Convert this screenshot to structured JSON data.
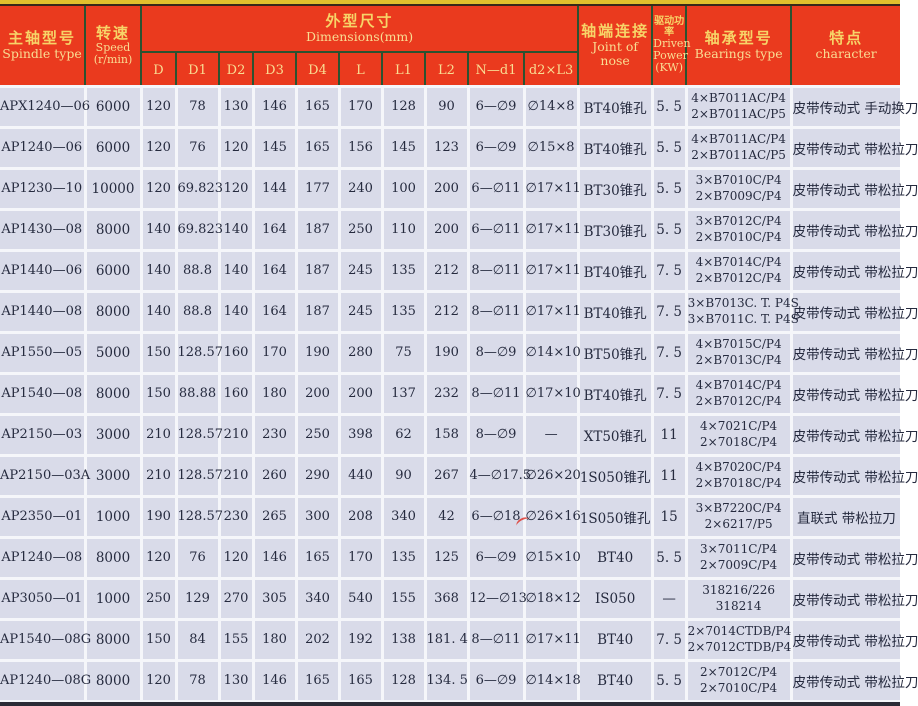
{
  "header": {
    "spindle": {
      "zh": "主轴型号",
      "en": "Spindle type"
    },
    "speed": {
      "zh": "转速",
      "en": "Speed",
      "unit": "(r/min)"
    },
    "dims": {
      "zh": "外型尺寸",
      "en": "Dimensions(mm)",
      "subs": [
        "D",
        "D1",
        "D2",
        "D3",
        "D4",
        "L",
        "L1",
        "L2",
        "N—d1",
        "d2×L3"
      ]
    },
    "joint": {
      "zh": "轴端连接",
      "en": "Joint of",
      "en2": "nose"
    },
    "power": {
      "zh": "驱动功率",
      "en": "Driven",
      "en2": "Power",
      "unit": "(KW)"
    },
    "bearings": {
      "zh": "轴承型号",
      "en": "Bearings type"
    },
    "character": {
      "zh": "特点",
      "en": "character"
    }
  },
  "rows": [
    {
      "model": "APX1240—06",
      "speed": "6000",
      "dims": [
        "120",
        "78",
        "130",
        "146",
        "165",
        "170",
        "128",
        "90",
        "6—∅9",
        "∅14×8"
      ],
      "joint": "BT40锥孔",
      "power": "5. 5",
      "bearings": [
        "4×B7011AC/P4",
        "2×B7011AC/P5"
      ],
      "character": "皮带传动式 手动换刀"
    },
    {
      "model": "AP1240—06",
      "speed": "6000",
      "dims": [
        "120",
        "76",
        "120",
        "145",
        "165",
        "156",
        "145",
        "123",
        "6—∅9",
        "∅15×8"
      ],
      "joint": "BT40锥孔",
      "power": "5. 5",
      "bearings": [
        "4×B7011AC/P4",
        "2×B7011AC/P5"
      ],
      "character": "皮带传动式 带松拉刀"
    },
    {
      "model": "AP1230—10",
      "speed": "10000",
      "dims": [
        "120",
        "69.823",
        "120",
        "144",
        "177",
        "240",
        "100",
        "200",
        "6—∅11",
        "∅17×11"
      ],
      "joint": "BT30锥孔",
      "power": "5. 5",
      "bearings": [
        "3×B7010C/P4",
        "2×B7009C/P4"
      ],
      "character": "皮带传动式 带松拉刀"
    },
    {
      "model": "AP1430—08",
      "speed": "8000",
      "dims": [
        "140",
        "69.823",
        "140",
        "164",
        "187",
        "250",
        "110",
        "200",
        "6—∅11",
        "∅17×11"
      ],
      "joint": "BT30锥孔",
      "power": "5. 5",
      "bearings": [
        "3×B7012C/P4",
        "2×B7010C/P4"
      ],
      "character": "皮带传动式 带松拉刀"
    },
    {
      "model": "AP1440—06",
      "speed": "6000",
      "dims": [
        "140",
        "88.8",
        "140",
        "164",
        "187",
        "245",
        "135",
        "212",
        "8—∅11",
        "∅17×11"
      ],
      "joint": "BT40锥孔",
      "power": "7. 5",
      "bearings": [
        "4×B7014C/P4",
        "2×B7012C/P4"
      ],
      "character": "皮带传动式 带松拉刀"
    },
    {
      "model": "AP1440—08",
      "speed": "8000",
      "dims": [
        "140",
        "88.8",
        "140",
        "164",
        "187",
        "245",
        "135",
        "212",
        "8—∅11",
        "∅17×11"
      ],
      "joint": "BT40锥孔",
      "power": "7. 5",
      "bearings": [
        "3×B7013C. T. P4S",
        "3×B7011C. T. P4S"
      ],
      "character": "皮带传动式 带松拉刀"
    },
    {
      "model": "AP1550—05",
      "speed": "5000",
      "dims": [
        "150",
        "128.57",
        "160",
        "170",
        "190",
        "280",
        "75",
        "190",
        "8—∅9",
        "∅14×10"
      ],
      "joint": "BT50锥孔",
      "power": "7. 5",
      "bearings": [
        "4×B7015C/P4",
        "2×B7013C/P4"
      ],
      "character": "皮带传动式 带松拉刀"
    },
    {
      "model": "AP1540—08",
      "speed": "8000",
      "dims": [
        "150",
        "88.88",
        "160",
        "180",
        "200",
        "200",
        "137",
        "232",
        "8—∅11",
        "∅17×10"
      ],
      "joint": "BT40锥孔",
      "power": "7. 5",
      "bearings": [
        "4×B7014C/P4",
        "2×B7012C/P4"
      ],
      "character": "皮带传动式 带松拉刀"
    },
    {
      "model": "AP2150—03",
      "speed": "3000",
      "dims": [
        "210",
        "128.57",
        "210",
        "230",
        "250",
        "398",
        "62",
        "158",
        "8—∅9",
        "—"
      ],
      "joint": "XT50锥孔",
      "power": "11",
      "bearings": [
        "4×7021C/P4",
        "2×7018C/P4"
      ],
      "character": "皮带传动式 带松拉刀"
    },
    {
      "model": "AP2150—03A",
      "speed": "3000",
      "dims": [
        "210",
        "128.57",
        "210",
        "260",
        "290",
        "440",
        "90",
        "267",
        "4—∅17.5",
        "∅26×20"
      ],
      "joint": "1S050锥孔",
      "power": "11",
      "bearings": [
        "4×B7020C/P4",
        "2×B7018C/P4"
      ],
      "character": "皮带传动式 带松拉刀"
    },
    {
      "model": "AP2350—01",
      "speed": "1000",
      "dims": [
        "190",
        "128.57",
        "230",
        "265",
        "300",
        "208",
        "340",
        "42",
        "6—∅18",
        "∅26×16"
      ],
      "joint": "1S050锥孔",
      "power": "15",
      "bearings": [
        "3×B7220C/P4",
        "2×6217/P5"
      ],
      "character": "直联式  带松拉刀"
    },
    {
      "model": "AP1240—08",
      "speed": "8000",
      "dims": [
        "120",
        "76",
        "120",
        "146",
        "165",
        "170",
        "135",
        "125",
        "6—∅9",
        "∅15×10"
      ],
      "joint": "BT40",
      "power": "5. 5",
      "bearings": [
        "3×7011C/P4",
        "2×7009C/P4"
      ],
      "character": "皮带传动式 带松拉刀"
    },
    {
      "model": "AP3050—01",
      "speed": "1000",
      "dims": [
        "250",
        "129",
        "270",
        "305",
        "340",
        "540",
        "155",
        "368",
        "12—∅13",
        "∅18×12"
      ],
      "joint": "IS050",
      "power": "—",
      "bearings": [
        "318216/226",
        "318214"
      ],
      "character": "皮带传动式 带松拉刀"
    },
    {
      "model": "AP1540—08G",
      "speed": "8000",
      "dims": [
        "150",
        "84",
        "155",
        "180",
        "202",
        "192",
        "138",
        "181. 4",
        "8—∅11",
        "∅17×11"
      ],
      "joint": "BT40",
      "power": "7. 5",
      "bearings": [
        "2×7014CTDB/P4",
        "2×7012CTDB/P4"
      ],
      "character": "皮带传动式 带松拉刀"
    },
    {
      "model": "AP1240—08G",
      "speed": "8000",
      "dims": [
        "120",
        "78",
        "130",
        "146",
        "165",
        "165",
        "128",
        "134. 5",
        "6—∅9",
        "∅14×18"
      ],
      "joint": "BT40",
      "power": "5. 5",
      "bearings": [
        "2×7012C/P4",
        "2×7010C/P4"
      ],
      "character": "皮带传动式 带松拉刀"
    }
  ],
  "colors": {
    "header_red": "#ea3a1e",
    "header_text_yellow": "#f7d468",
    "header_divider_green": "#2a5230",
    "top_accent_yellow": "#e2bf2d",
    "row_background": "#d9dbe9",
    "grid_white": "#f5f6fa",
    "ink": "#252a3e",
    "pen_mark_red": "#e03a30"
  }
}
